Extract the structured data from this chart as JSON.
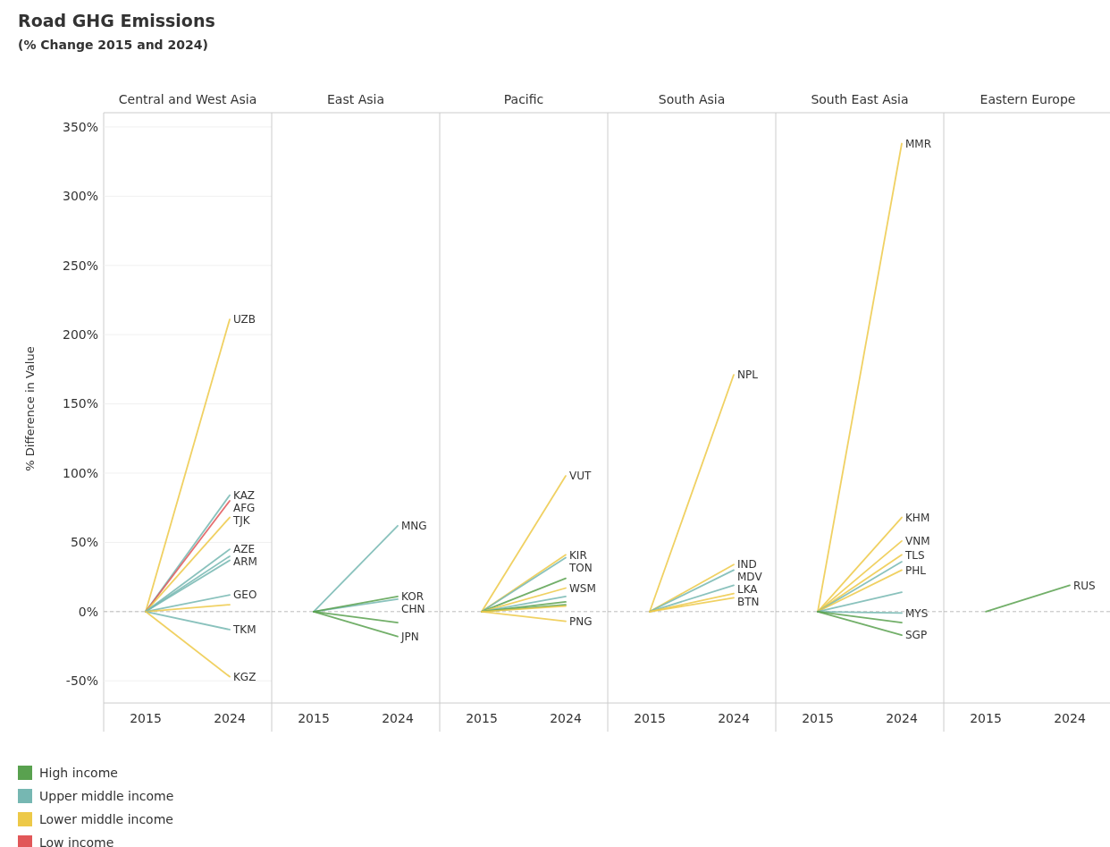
{
  "chart_data": [
    {
      "type": "other",
      "title": "Road GHG Emissions",
      "subtitle": "(% Change 2015 and 2024)"
    },
    {
      "type": "line",
      "title": "Central and West Asia",
      "ylabel": "% Difference in Value",
      "categories": [
        "2015",
        "2024"
      ],
      "ylim": [
        -66,
        359
      ],
      "yticks": [
        {
          "value": -50,
          "label": "-50%"
        },
        {
          "value": 0,
          "label": "0%"
        },
        {
          "value": 50,
          "label": "50%"
        },
        {
          "value": 100,
          "label": "100%"
        },
        {
          "value": 150,
          "label": "150%"
        },
        {
          "value": 200,
          "label": "200%"
        },
        {
          "value": 250,
          "label": "250%"
        },
        {
          "value": 300,
          "label": "300%"
        },
        {
          "value": 350,
          "label": "350%"
        }
      ],
      "grid": "y",
      "marker": "none",
      "ref_lines": [
        {
          "axis": "y",
          "value": 0,
          "line_style": "dashed",
          "color": "#bbbbbb"
        }
      ],
      "series": [
        {
          "name": "UZB",
          "color": "#edc948",
          "values": [
            0,
            211
          ]
        },
        {
          "name": "KAZ",
          "color": "#76b7b2",
          "values": [
            0,
            84
          ]
        },
        {
          "name": "AFG",
          "color": "#e15759",
          "values": [
            0,
            80
          ]
        },
        {
          "name": "TJK",
          "color": "#edc948",
          "values": [
            0,
            68
          ]
        },
        {
          "name": "AZE",
          "color": "#76b7b2",
          "values": [
            0,
            45
          ]
        },
        {
          "color": "#76b7b2",
          "values": [
            0,
            40
          ]
        },
        {
          "name": "ARM",
          "color": "#76b7b2",
          "values": [
            0,
            37
          ]
        },
        {
          "name": "GEO",
          "color": "#76b7b2",
          "values": [
            0,
            12
          ]
        },
        {
          "color": "#edc948",
          "values": [
            0,
            5
          ]
        },
        {
          "name": "TKM",
          "color": "#76b7b2",
          "values": [
            0,
            -13
          ]
        },
        {
          "name": "KGZ",
          "color": "#edc948",
          "values": [
            0,
            -47
          ]
        }
      ]
    },
    {
      "type": "line",
      "title": "East Asia",
      "categories": [
        "2015",
        "2024"
      ],
      "ylim": [
        -66,
        359
      ],
      "tick_labels": "x",
      "grid": "y",
      "marker": "none",
      "ref_lines": [
        {
          "axis": "y",
          "value": 0,
          "line_style": "dashed",
          "color": "#bbbbbb"
        }
      ],
      "series": [
        {
          "name": "MNG",
          "color": "#76b7b2",
          "values": [
            0,
            62
          ]
        },
        {
          "name": "CHN",
          "color": "#76b7b2",
          "values": [
            0,
            9
          ]
        },
        {
          "name": "KOR",
          "color": "#59a14f",
          "values": [
            0,
            11
          ]
        },
        {
          "color": "#59a14f",
          "values": [
            0,
            -8
          ]
        },
        {
          "name": "JPN",
          "color": "#59a14f",
          "values": [
            0,
            -18
          ]
        }
      ]
    },
    {
      "type": "line",
      "title": "Pacific",
      "categories": [
        "2015",
        "2024"
      ],
      "ylim": [
        -66,
        359
      ],
      "tick_labels": "x",
      "grid": "y",
      "marker": "none",
      "ref_lines": [
        {
          "axis": "y",
          "value": 0,
          "line_style": "dashed",
          "color": "#bbbbbb"
        }
      ],
      "series": [
        {
          "name": "VUT",
          "color": "#edc948",
          "values": [
            0,
            98
          ]
        },
        {
          "name": "KIR",
          "color": "#edc948",
          "values": [
            0,
            41
          ]
        },
        {
          "name": "TON",
          "color": "#76b7b2",
          "values": [
            0,
            39
          ]
        },
        {
          "color": "#59a14f",
          "values": [
            0,
            24
          ]
        },
        {
          "name": "WSM",
          "color": "#edc948",
          "values": [
            0,
            17
          ]
        },
        {
          "color": "#76b7b2",
          "values": [
            0,
            11
          ]
        },
        {
          "color": "#59a14f",
          "values": [
            0,
            7
          ]
        },
        {
          "color": "#59a14f",
          "values": [
            0,
            5
          ]
        },
        {
          "color": "#edc948",
          "values": [
            0,
            4
          ]
        },
        {
          "name": "PNG",
          "color": "#edc948",
          "values": [
            0,
            -7
          ]
        }
      ]
    },
    {
      "type": "line",
      "title": "South Asia",
      "categories": [
        "2015",
        "2024"
      ],
      "ylim": [
        -66,
        359
      ],
      "tick_labels": "x",
      "grid": "y",
      "marker": "none",
      "ref_lines": [
        {
          "axis": "y",
          "value": 0,
          "line_style": "dashed",
          "color": "#bbbbbb"
        }
      ],
      "series": [
        {
          "name": "NPL",
          "color": "#edc948",
          "values": [
            0,
            171
          ]
        },
        {
          "name": "IND",
          "color": "#edc948",
          "values": [
            0,
            34
          ]
        },
        {
          "name": "MDV",
          "color": "#76b7b2",
          "values": [
            0,
            30
          ]
        },
        {
          "name": "LKA",
          "color": "#76b7b2",
          "values": [
            0,
            19
          ]
        },
        {
          "color": "#edc948",
          "values": [
            0,
            13
          ]
        },
        {
          "name": "BTN",
          "color": "#edc948",
          "values": [
            0,
            10
          ]
        }
      ]
    },
    {
      "type": "line",
      "title": "South East Asia",
      "categories": [
        "2015",
        "2024"
      ],
      "ylim": [
        -66,
        359
      ],
      "tick_labels": "x",
      "grid": "y",
      "marker": "none",
      "ref_lines": [
        {
          "axis": "y",
          "value": 0,
          "line_style": "dashed",
          "color": "#bbbbbb"
        }
      ],
      "series": [
        {
          "name": "MMR",
          "color": "#edc948",
          "values": [
            0,
            338
          ]
        },
        {
          "name": "KHM",
          "color": "#edc948",
          "values": [
            0,
            68
          ]
        },
        {
          "name": "VNM",
          "color": "#edc948",
          "values": [
            0,
            51
          ]
        },
        {
          "name": "TLS",
          "color": "#edc948",
          "values": [
            0,
            41
          ]
        },
        {
          "color": "#76b7b2",
          "values": [
            0,
            36
          ]
        },
        {
          "name": "PHL",
          "color": "#edc948",
          "values": [
            0,
            30
          ]
        },
        {
          "color": "#76b7b2",
          "values": [
            0,
            14
          ]
        },
        {
          "name": "MYS",
          "color": "#76b7b2",
          "values": [
            0,
            -1
          ]
        },
        {
          "color": "#59a14f",
          "values": [
            0,
            -8
          ]
        },
        {
          "name": "SGP",
          "color": "#59a14f",
          "values": [
            0,
            -17
          ]
        }
      ]
    },
    {
      "type": "line",
      "title": "Eastern Europe",
      "categories": [
        "2015",
        "2024"
      ],
      "ylim": [
        -66,
        359
      ],
      "tick_labels": "x",
      "grid": "y",
      "marker": "none",
      "ref_lines": [
        {
          "axis": "y",
          "value": 0,
          "line_style": "dashed",
          "color": "#bbbbbb"
        }
      ],
      "series": [
        {
          "name": "RUS",
          "color": "#59a14f",
          "values": [
            0,
            19
          ]
        }
      ]
    },
    {
      "type": "other",
      "categories": [
        "High income",
        "Upper middle income",
        "Lower middle income",
        "Low income"
      ],
      "colors": [
        "#59a14f",
        "#76b7b2",
        "#edc948",
        "#e15759"
      ]
    }
  ]
}
